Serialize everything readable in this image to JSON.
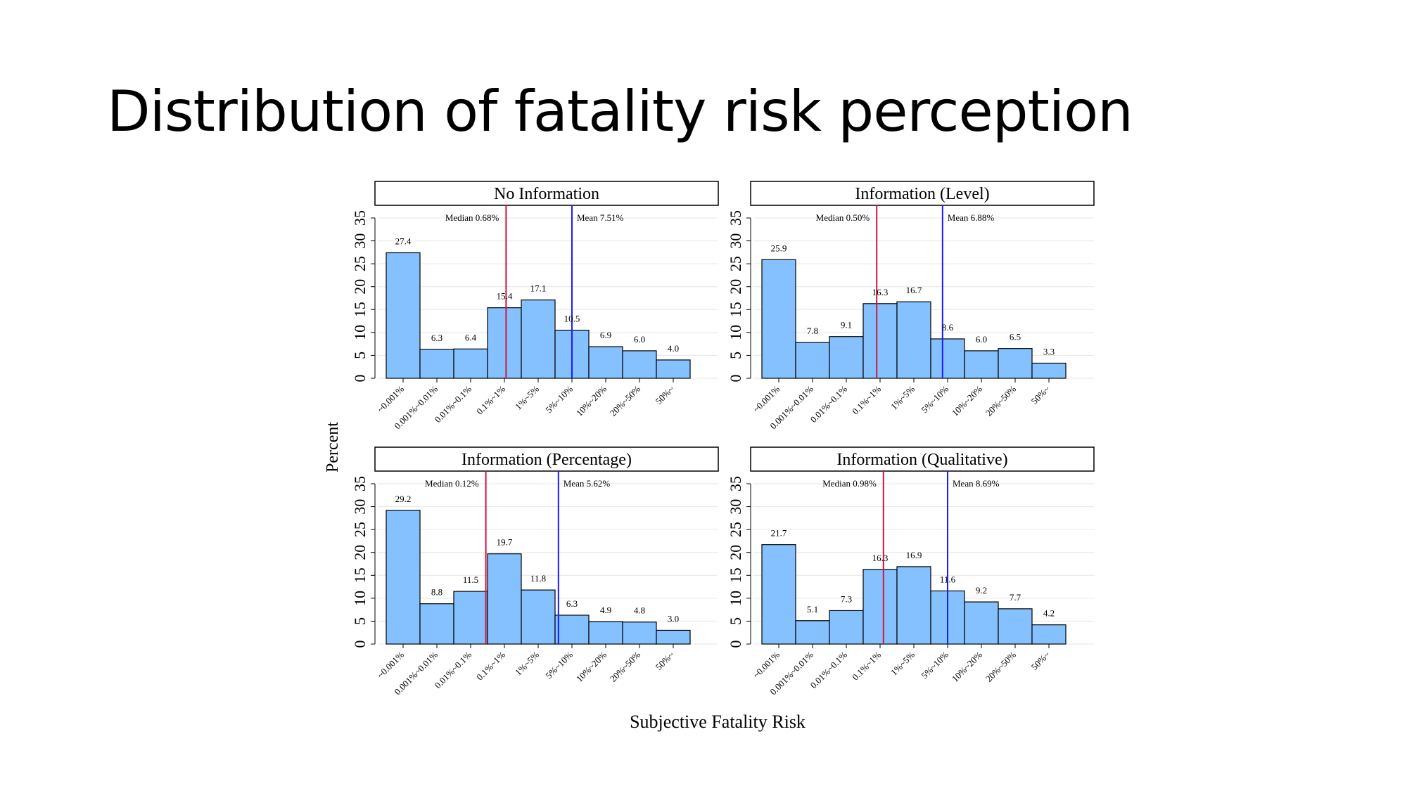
{
  "slide": {
    "title": "Distribution of fatality risk perception"
  },
  "figure": {
    "ylabel": "Percent",
    "xlabel": "Subjective Fatality Risk",
    "bar_color": "#85c1ff",
    "median_color": "#d1133f",
    "mean_color": "#1a1aff"
  },
  "chart_data": [
    {
      "type": "bar",
      "title": "No Information",
      "categories": [
        "~0.001%",
        "0.001%~0.01%",
        "0.01%~0.1%",
        "0.1%~1%",
        "1%~5%",
        "5%~10%",
        "10%~20%",
        "20%~50%",
        "50%~"
      ],
      "values": [
        27.4,
        6.3,
        6.4,
        15.4,
        17.1,
        10.5,
        6.9,
        6.0,
        4.0
      ],
      "value_labels": [
        "27.4",
        "6.3",
        "6.4",
        "15.4",
        "17.1",
        "10.5",
        "6.9",
        "6.0",
        "4.0"
      ],
      "ylim": [
        0,
        35
      ],
      "yticks": [
        "0",
        "5",
        "10",
        "15",
        "20",
        "25",
        "30",
        "35"
      ],
      "median": {
        "label": "Median 0.68%",
        "position": 3.55
      },
      "mean": {
        "label": "Mean 7.51%",
        "position": 5.5
      }
    },
    {
      "type": "bar",
      "title": "Information (Level)",
      "categories": [
        "~0.001%",
        "0.001%~0.01%",
        "0.01%~0.1%",
        "0.1%~1%",
        "1%~5%",
        "5%~10%",
        "10%~20%",
        "20%~50%",
        "50%~"
      ],
      "values": [
        25.9,
        7.8,
        9.1,
        16.3,
        16.7,
        8.6,
        6.0,
        6.5,
        3.3
      ],
      "value_labels": [
        "25.9",
        "7.8",
        "9.1",
        "16.3",
        "16.7",
        "8.6",
        "6.0",
        "6.5",
        "3.3"
      ],
      "ylim": [
        0,
        35
      ],
      "yticks": [
        "0",
        "5",
        "10",
        "15",
        "20",
        "25",
        "30",
        "35"
      ],
      "median": {
        "label": "Median 0.50%",
        "position": 3.4
      },
      "mean": {
        "label": "Mean 6.88%",
        "position": 5.35
      }
    },
    {
      "type": "bar",
      "title": "Information (Percentage)",
      "categories": [
        "~0.001%",
        "0.001%~0.01%",
        "0.01%~0.1%",
        "0.1%~1%",
        "1%~5%",
        "5%~10%",
        "10%~20%",
        "20%~50%",
        "50%~"
      ],
      "values": [
        29.2,
        8.8,
        11.5,
        19.7,
        11.8,
        6.3,
        4.9,
        4.8,
        3.0
      ],
      "value_labels": [
        "29.2",
        "8.8",
        "11.5",
        "19.7",
        "11.8",
        "6.3",
        "4.9",
        "4.8",
        "3.0"
      ],
      "ylim": [
        0,
        35
      ],
      "yticks": [
        "0",
        "5",
        "10",
        "15",
        "20",
        "25",
        "30",
        "35"
      ],
      "median": {
        "label": "Median 0.12%",
        "position": 2.95
      },
      "mean": {
        "label": "Mean 5.62%",
        "position": 5.1
      }
    },
    {
      "type": "bar",
      "title": "Information (Qualitative)",
      "categories": [
        "~0.001%",
        "0.001%~0.01%",
        "0.01%~0.1%",
        "0.1%~1%",
        "1%~5%",
        "5%~10%",
        "10%~20%",
        "20%~50%",
        "50%~"
      ],
      "values": [
        21.7,
        5.1,
        7.3,
        16.3,
        16.9,
        11.6,
        9.2,
        7.7,
        4.2
      ],
      "value_labels": [
        "21.7",
        "5.1",
        "7.3",
        "16.3",
        "16.9",
        "11.6",
        "9.2",
        "7.7",
        "4.2"
      ],
      "ylim": [
        0,
        35
      ],
      "yticks": [
        "0",
        "5",
        "10",
        "15",
        "20",
        "25",
        "30",
        "35"
      ],
      "median": {
        "label": "Median 0.98%",
        "position": 3.6
      },
      "mean": {
        "label": "Mean 8.69%",
        "position": 5.5
      }
    }
  ]
}
